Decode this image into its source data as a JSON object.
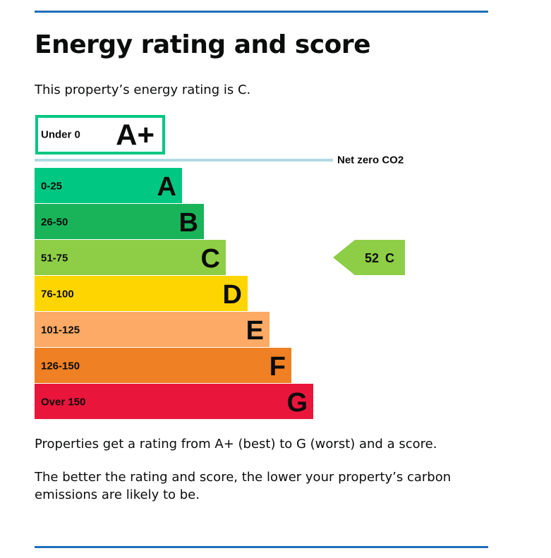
{
  "page": {
    "title": "Energy rating and score",
    "intro": "This property’s energy rating is C.",
    "para1": "Properties get a rating from A+ (best) to G (worst) and a score.",
    "para2": "The better the rating and score, the lower your property’s carbon emissions are likely to be."
  },
  "chart_data": {
    "type": "bar",
    "net_zero_label": "Net zero CO2",
    "bands": [
      {
        "range": "Under 0",
        "letter": "A+",
        "color": "#00c781",
        "outline_only": true
      },
      {
        "range": "0-25",
        "letter": "A",
        "color": "#00c781"
      },
      {
        "range": "26-50",
        "letter": "B",
        "color": "#19b459"
      },
      {
        "range": "51-75",
        "letter": "C",
        "color": "#8dce46"
      },
      {
        "range": "76-100",
        "letter": "D",
        "color": "#ffd500"
      },
      {
        "range": "101-125",
        "letter": "E",
        "color": "#fcaa65"
      },
      {
        "range": "126-150",
        "letter": "F",
        "color": "#ef8023"
      },
      {
        "range": "Over 150",
        "letter": "G",
        "color": "#e9153b"
      }
    ],
    "current": {
      "score": 52,
      "letter": "C",
      "score_text": "52",
      "letter_text": "C",
      "color": "#8dce46"
    }
  }
}
